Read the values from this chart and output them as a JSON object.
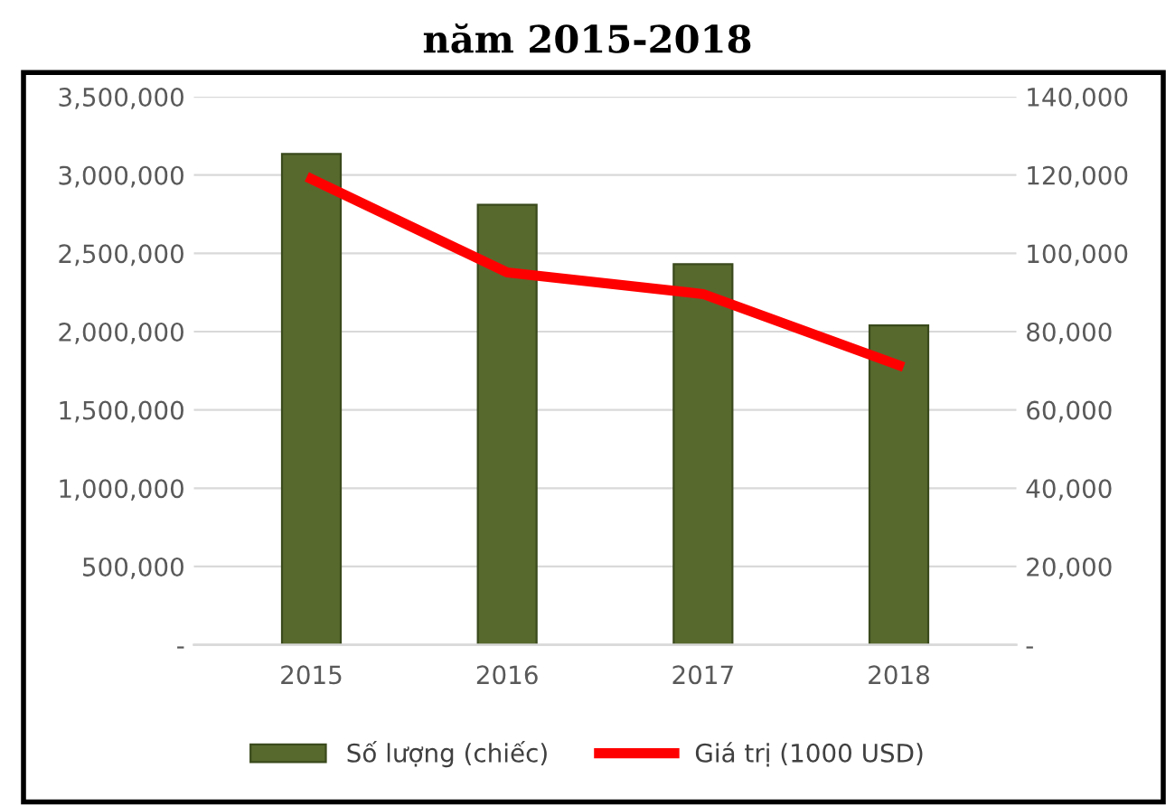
{
  "chart_data": {
    "type": "bar",
    "title": "năm 2015-2018",
    "categories": [
      "2015",
      "2016",
      "2017",
      "2018"
    ],
    "series": [
      {
        "name": "Số lượng (chiếc)",
        "color": "#58692e",
        "values": [
          3135000,
          2810000,
          2430000,
          2040000
        ]
      },
      {
        "name": "Giá trị (1000 USD)",
        "type": "line",
        "axis": "y2",
        "color": "#ff0000",
        "values": [
          119000,
          95100,
          89600,
          71400
        ]
      }
    ],
    "ylim": [
      0,
      3500000
    ],
    "yticks": [
      {
        "value": 0,
        "label": "-"
      },
      {
        "value": 500000,
        "label": "500,000"
      },
      {
        "value": 1000000,
        "label": "1,000,000"
      },
      {
        "value": 1500000,
        "label": "1,500,000"
      },
      {
        "value": 2000000,
        "label": "2,000,000"
      },
      {
        "value": 2500000,
        "label": "2,500,000"
      },
      {
        "value": 3000000,
        "label": "3,000,000"
      },
      {
        "value": 3500000,
        "label": "3,500,000"
      }
    ],
    "y2lim": [
      0,
      140000
    ],
    "y2ticks": [
      {
        "value": 0,
        "label": "-"
      },
      {
        "value": 20000,
        "label": "20,000"
      },
      {
        "value": 40000,
        "label": "40,000"
      },
      {
        "value": 60000,
        "label": "60,000"
      },
      {
        "value": 80000,
        "label": "80,000"
      },
      {
        "value": 100000,
        "label": "100,000"
      },
      {
        "value": 120000,
        "label": "120,000"
      },
      {
        "value": 140000,
        "label": "140,000"
      }
    ],
    "grid": "y",
    "legend": "bottom",
    "marker": "none",
    "line_style": "solid"
  }
}
